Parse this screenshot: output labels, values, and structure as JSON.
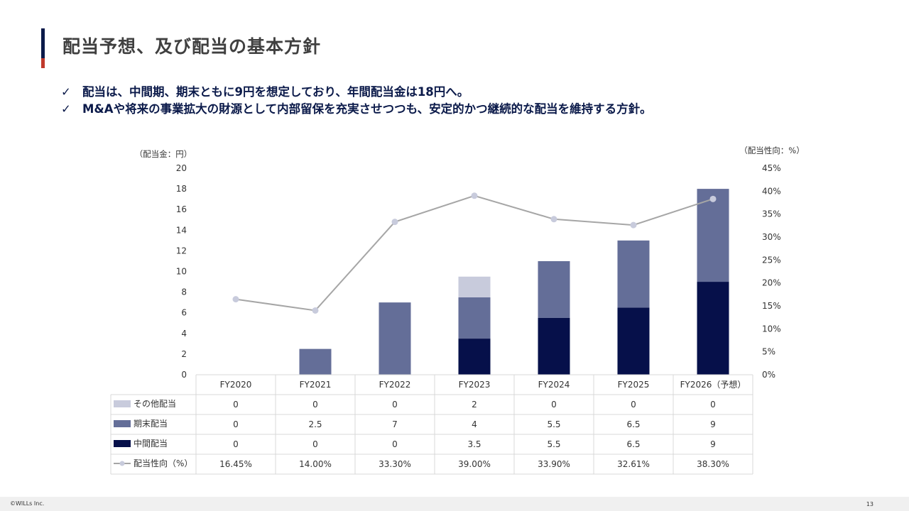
{
  "title": "配当予想、及び配当の基本方針",
  "bullets": [
    "配当は、中間期、期末ともに9円を想定しており、年間配当金は18円へ。",
    "M&Aや将来の事業拡大の財源として内部留保を充実させつつも、安定的かつ継続的な配当を維持する方針。"
  ],
  "bullet_icon": "checkmark-icon",
  "colors": {
    "interim": "#06104a",
    "year_end": "#646e98",
    "other": "#c8cbdc",
    "payout_line": "#a6a6a6",
    "payout_marker": "#c8cbdc"
  },
  "chart_data": {
    "type": "bar",
    "stacked": true,
    "left_axis_label": "（配当金：円）",
    "right_axis_label": "（配当性向：%）",
    "left_ticks": [
      "0",
      "2",
      "4",
      "6",
      "8",
      "10",
      "12",
      "14",
      "16",
      "18",
      "20"
    ],
    "right_ticks": [
      "0%",
      "5%",
      "10%",
      "15%",
      "20%",
      "25%",
      "30%",
      "35%",
      "40%",
      "45%"
    ],
    "ylim_left": [
      0,
      20
    ],
    "ylim_right": [
      0,
      45
    ],
    "categories": [
      "FY2020",
      "FY2021",
      "FY2022",
      "FY2023",
      "FY2024",
      "FY2025",
      "FY2026（予想）"
    ],
    "series": [
      {
        "name": "その他配当",
        "kind": "bar",
        "values": [
          0,
          0,
          0,
          2,
          0,
          0,
          0
        ],
        "display": [
          "0",
          "0",
          "0",
          "2",
          "0",
          "0",
          "0"
        ]
      },
      {
        "name": "期末配当",
        "kind": "bar",
        "values": [
          0,
          2.5,
          7,
          4,
          5.5,
          6.5,
          9
        ],
        "display": [
          "0",
          "2.5",
          "7",
          "4",
          "5.5",
          "6.5",
          "9"
        ]
      },
      {
        "name": "中間配当",
        "kind": "bar",
        "values": [
          0,
          0,
          0,
          3.5,
          5.5,
          6.5,
          9
        ],
        "display": [
          "0",
          "0",
          "0",
          "3.5",
          "5.5",
          "6.5",
          "9"
        ]
      },
      {
        "name": "配当性向（%）",
        "kind": "line",
        "axis": "right",
        "values": [
          16.45,
          14.0,
          33.3,
          39.0,
          33.9,
          32.61,
          38.3
        ],
        "display": [
          "16.45%",
          "14.00%",
          "33.30%",
          "39.00%",
          "33.90%",
          "32.61%",
          "38.30%"
        ]
      }
    ]
  },
  "footer": {
    "copyright": "©WILLs Inc.",
    "page_number": "13"
  }
}
